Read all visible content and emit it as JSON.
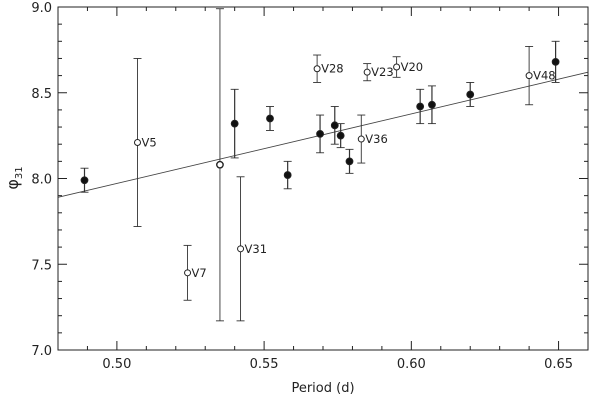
{
  "chart_data": {
    "type": "scatter",
    "xlabel": "Period (d)",
    "ylabel_symbol": "φ",
    "ylabel_sub": "31",
    "xlim": [
      0.48,
      0.66
    ],
    "ylim": [
      7.0,
      9.0
    ],
    "xticks": [
      "0.50",
      "0.55",
      "0.60",
      "0.65"
    ],
    "yticks": [
      "7.0",
      "7.5",
      "8.0",
      "8.5",
      "9.0"
    ],
    "grid": false,
    "fit_line": {
      "x": [
        0.48,
        0.66
      ],
      "y": [
        7.89,
        8.62
      ]
    },
    "series": [
      {
        "marker": "filled-circle",
        "points": [
          {
            "x": 0.489,
            "y": 7.99,
            "err": 0.07
          },
          {
            "x": 0.535,
            "y": 8.08,
            "err": 0.0
          },
          {
            "x": 0.54,
            "y": 8.32,
            "err": 0.2
          },
          {
            "x": 0.552,
            "y": 8.35,
            "err": 0.07
          },
          {
            "x": 0.558,
            "y": 8.02,
            "err": 0.08
          },
          {
            "x": 0.569,
            "y": 8.26,
            "err": 0.11
          },
          {
            "x": 0.574,
            "y": 8.31,
            "err": 0.11
          },
          {
            "x": 0.576,
            "y": 8.25,
            "err": 0.07
          },
          {
            "x": 0.579,
            "y": 8.1,
            "err": 0.07
          },
          {
            "x": 0.603,
            "y": 8.42,
            "err": 0.1
          },
          {
            "x": 0.607,
            "y": 8.43,
            "err": 0.11
          },
          {
            "x": 0.62,
            "y": 8.49,
            "err": 0.07
          },
          {
            "x": 0.649,
            "y": 8.68,
            "err": 0.12
          }
        ]
      },
      {
        "marker": "open-circle",
        "points": [
          {
            "x": 0.507,
            "y": 8.21,
            "err": 0.49,
            "label": "V5"
          },
          {
            "x": 0.524,
            "y": 7.45,
            "err": 0.16,
            "label": "V7"
          },
          {
            "x": 0.535,
            "y": 8.08,
            "err": 0.91,
            "label": ""
          },
          {
            "x": 0.542,
            "y": 7.59,
            "err": 0.42,
            "label": "V31"
          },
          {
            "x": 0.568,
            "y": 8.64,
            "err": 0.08,
            "label": "V28"
          },
          {
            "x": 0.583,
            "y": 8.23,
            "err": 0.14,
            "label": "V36"
          },
          {
            "x": 0.585,
            "y": 8.62,
            "err": 0.05,
            "label": "V23"
          },
          {
            "x": 0.595,
            "y": 8.65,
            "err": 0.06,
            "label": "V20"
          },
          {
            "x": 0.64,
            "y": 8.6,
            "err": 0.17,
            "label": "V48"
          }
        ]
      }
    ]
  }
}
